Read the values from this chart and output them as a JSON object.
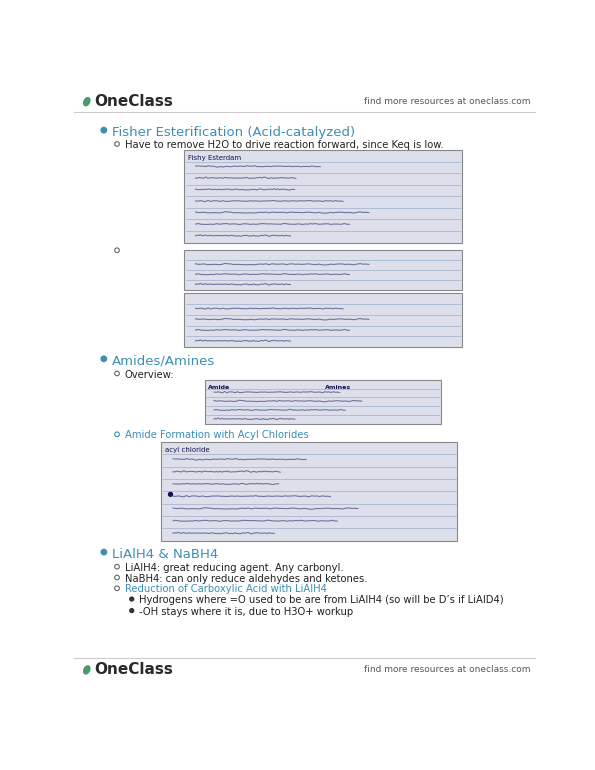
{
  "bg_color": "#ffffff",
  "logo_color": "#4a9a6e",
  "logo_text": "OneClass",
  "header_right": "find more resources at oneclass.com",
  "footer_right": "find more resources at oneclass.com",
  "accent_color": "#3d8eb5",
  "dark_text": "#222222",
  "section1_title": "Fisher Esterification (Acid-catalyzed)",
  "section1_sub1": "Have to remove H2O to drive reaction forward, since Keq is low.",
  "section2_title": "Amides/Amines",
  "section2_sub1": "Overview:",
  "section2_sub2": "Amide Formation with Acyl Chlorides",
  "section3_title": "LiAlH4 & NaBH4",
  "section3_bullets": [
    "LiAlH4: great reducing agent. Any carbonyl.",
    "NaBH4: can only reduce aldehydes and ketones.",
    "Reduction of Carboxylic Acid with LiAlH4"
  ],
  "section3_sub_bullets": [
    "Hydrogens where =O used to be are from LiAlH4 (so will be D’s if LiAID4)",
    "-OH stays where it is, due to H3O+ workup"
  ]
}
